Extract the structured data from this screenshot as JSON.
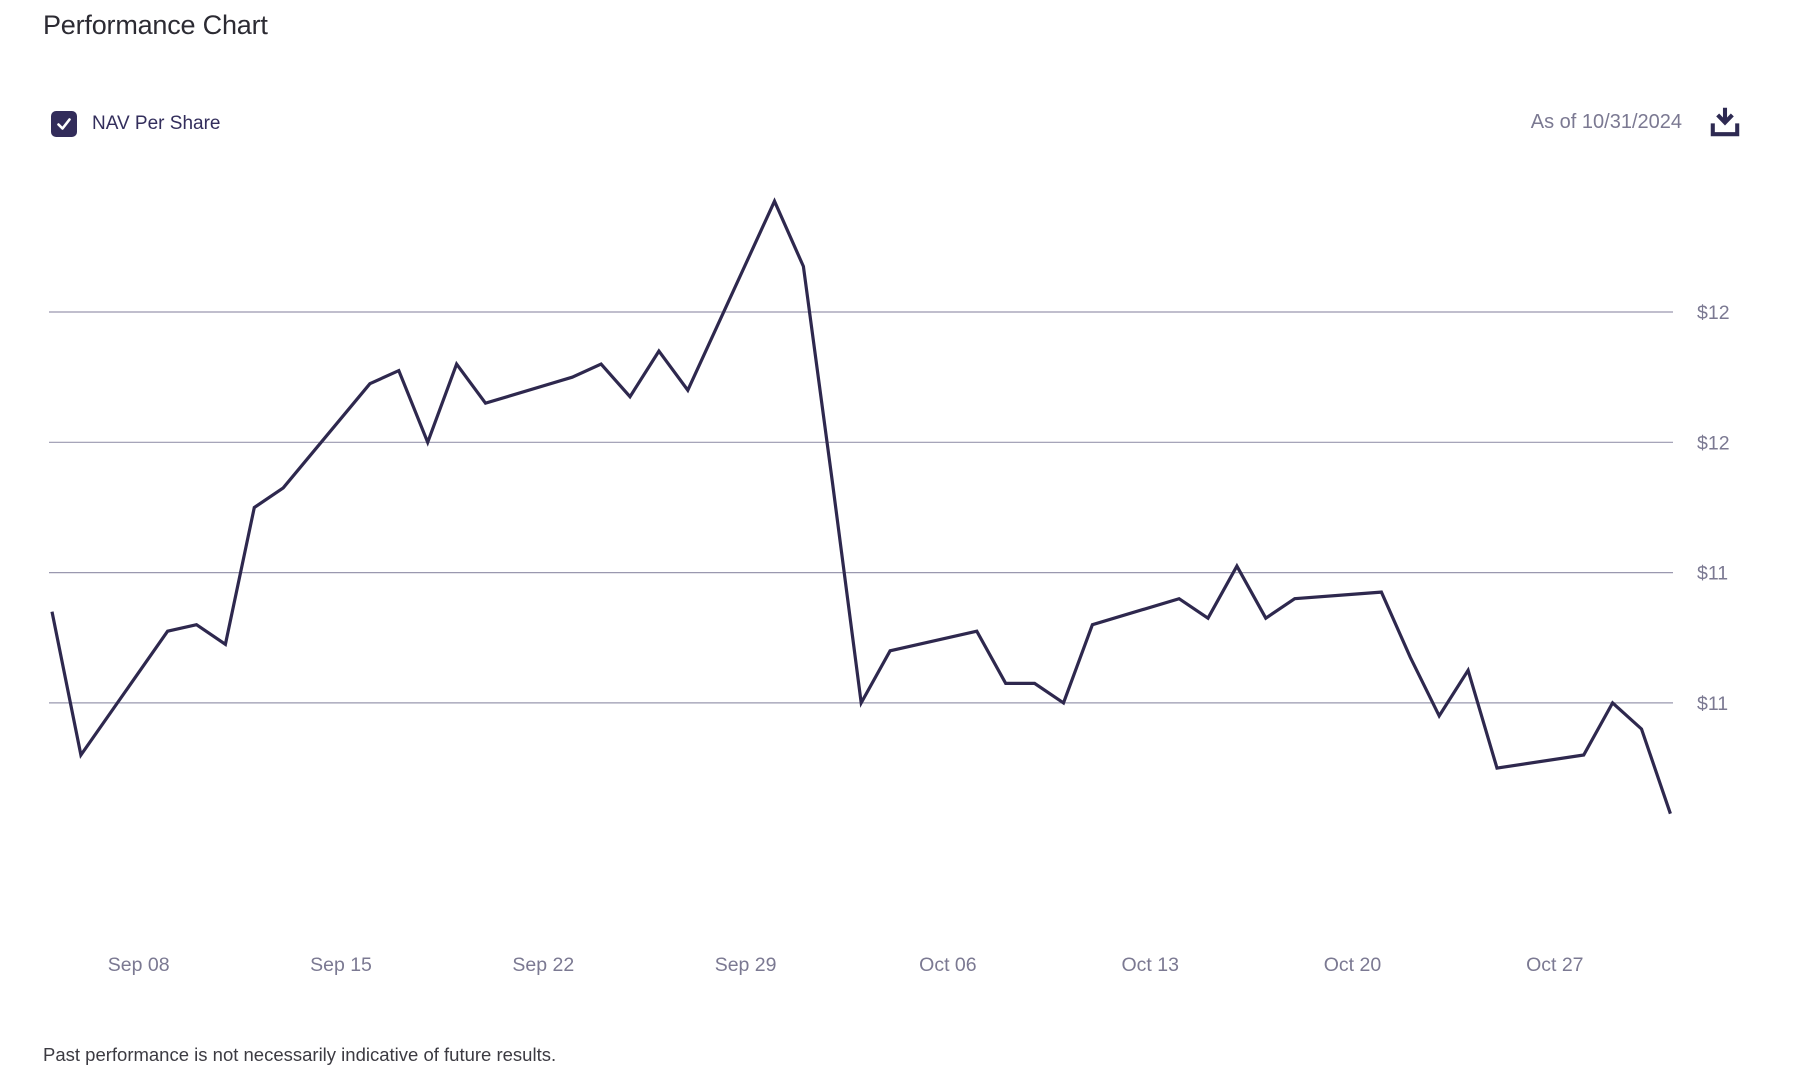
{
  "header": {
    "title": "Performance Chart"
  },
  "legend": {
    "label": "NAV Per Share",
    "checked": true,
    "checkbox_color": "#322c5a",
    "checkmark_icon": "checkmark-icon"
  },
  "toolbar": {
    "as_of_label": "As of 10/31/2024",
    "download_icon": "download-icon"
  },
  "footer": {
    "disclaimer": "Past performance is not necessarily indicative of future results."
  },
  "colors": {
    "accent": "#322c5a",
    "line": "#2e284e",
    "gridline": "#9a98af",
    "axis_text": "#7b7992",
    "title_text": "#2c2b33",
    "background": "#ffffff"
  },
  "chart_data": {
    "type": "line",
    "title": "Performance Chart",
    "xlabel": "",
    "ylabel": "NAV Per Share ($)",
    "grid": "horizontal-only",
    "legend_position": "top-left",
    "x_range": [
      "2024-09-05",
      "2024-10-31"
    ],
    "ylim": [
      10.95,
      12.05
    ],
    "y_gridlines": [
      {
        "value": 11.8,
        "label": "$12"
      },
      {
        "value": 11.6,
        "label": "$12"
      },
      {
        "value": 11.4,
        "label": "$11"
      },
      {
        "value": 11.2,
        "label": "$11"
      }
    ],
    "x_ticks": [
      {
        "date": "2024-09-08",
        "label": "Sep 08"
      },
      {
        "date": "2024-09-15",
        "label": "Sep 15"
      },
      {
        "date": "2024-09-22",
        "label": "Sep 22"
      },
      {
        "date": "2024-09-29",
        "label": "Sep 29"
      },
      {
        "date": "2024-10-06",
        "label": "Oct 06"
      },
      {
        "date": "2024-10-13",
        "label": "Oct 13"
      },
      {
        "date": "2024-10-20",
        "label": "Oct 20"
      },
      {
        "date": "2024-10-27",
        "label": "Oct 27"
      }
    ],
    "series": [
      {
        "name": "NAV Per Share",
        "points": [
          {
            "date": "2024-09-05",
            "value": 11.34
          },
          {
            "date": "2024-09-06",
            "value": 11.12
          },
          {
            "date": "2024-09-09",
            "value": 11.31
          },
          {
            "date": "2024-09-10",
            "value": 11.32
          },
          {
            "date": "2024-09-11",
            "value": 11.29
          },
          {
            "date": "2024-09-12",
            "value": 11.5
          },
          {
            "date": "2024-09-13",
            "value": 11.53
          },
          {
            "date": "2024-09-16",
            "value": 11.69
          },
          {
            "date": "2024-09-17",
            "value": 11.71
          },
          {
            "date": "2024-09-18",
            "value": 11.6
          },
          {
            "date": "2024-09-19",
            "value": 11.72
          },
          {
            "date": "2024-09-20",
            "value": 11.66
          },
          {
            "date": "2024-09-23",
            "value": 11.7
          },
          {
            "date": "2024-09-24",
            "value": 11.72
          },
          {
            "date": "2024-09-25",
            "value": 11.67
          },
          {
            "date": "2024-09-26",
            "value": 11.74
          },
          {
            "date": "2024-09-27",
            "value": 11.68
          },
          {
            "date": "2024-09-30",
            "value": 11.97
          },
          {
            "date": "2024-10-01",
            "value": 11.87
          },
          {
            "date": "2024-10-02",
            "value": 11.54
          },
          {
            "date": "2024-10-03",
            "value": 11.2
          },
          {
            "date": "2024-10-04",
            "value": 11.28
          },
          {
            "date": "2024-10-07",
            "value": 11.31
          },
          {
            "date": "2024-10-08",
            "value": 11.23
          },
          {
            "date": "2024-10-09",
            "value": 11.23
          },
          {
            "date": "2024-10-10",
            "value": 11.2
          },
          {
            "date": "2024-10-11",
            "value": 11.32
          },
          {
            "date": "2024-10-14",
            "value": 11.36
          },
          {
            "date": "2024-10-15",
            "value": 11.33
          },
          {
            "date": "2024-10-16",
            "value": 11.41
          },
          {
            "date": "2024-10-17",
            "value": 11.33
          },
          {
            "date": "2024-10-18",
            "value": 11.36
          },
          {
            "date": "2024-10-21",
            "value": 11.37
          },
          {
            "date": "2024-10-22",
            "value": 11.27
          },
          {
            "date": "2024-10-23",
            "value": 11.18
          },
          {
            "date": "2024-10-24",
            "value": 11.25
          },
          {
            "date": "2024-10-25",
            "value": 11.1
          },
          {
            "date": "2024-10-28",
            "value": 11.12
          },
          {
            "date": "2024-10-29",
            "value": 11.2
          },
          {
            "date": "2024-10-30",
            "value": 11.16
          },
          {
            "date": "2024-10-31",
            "value": 11.03
          }
        ]
      }
    ]
  }
}
